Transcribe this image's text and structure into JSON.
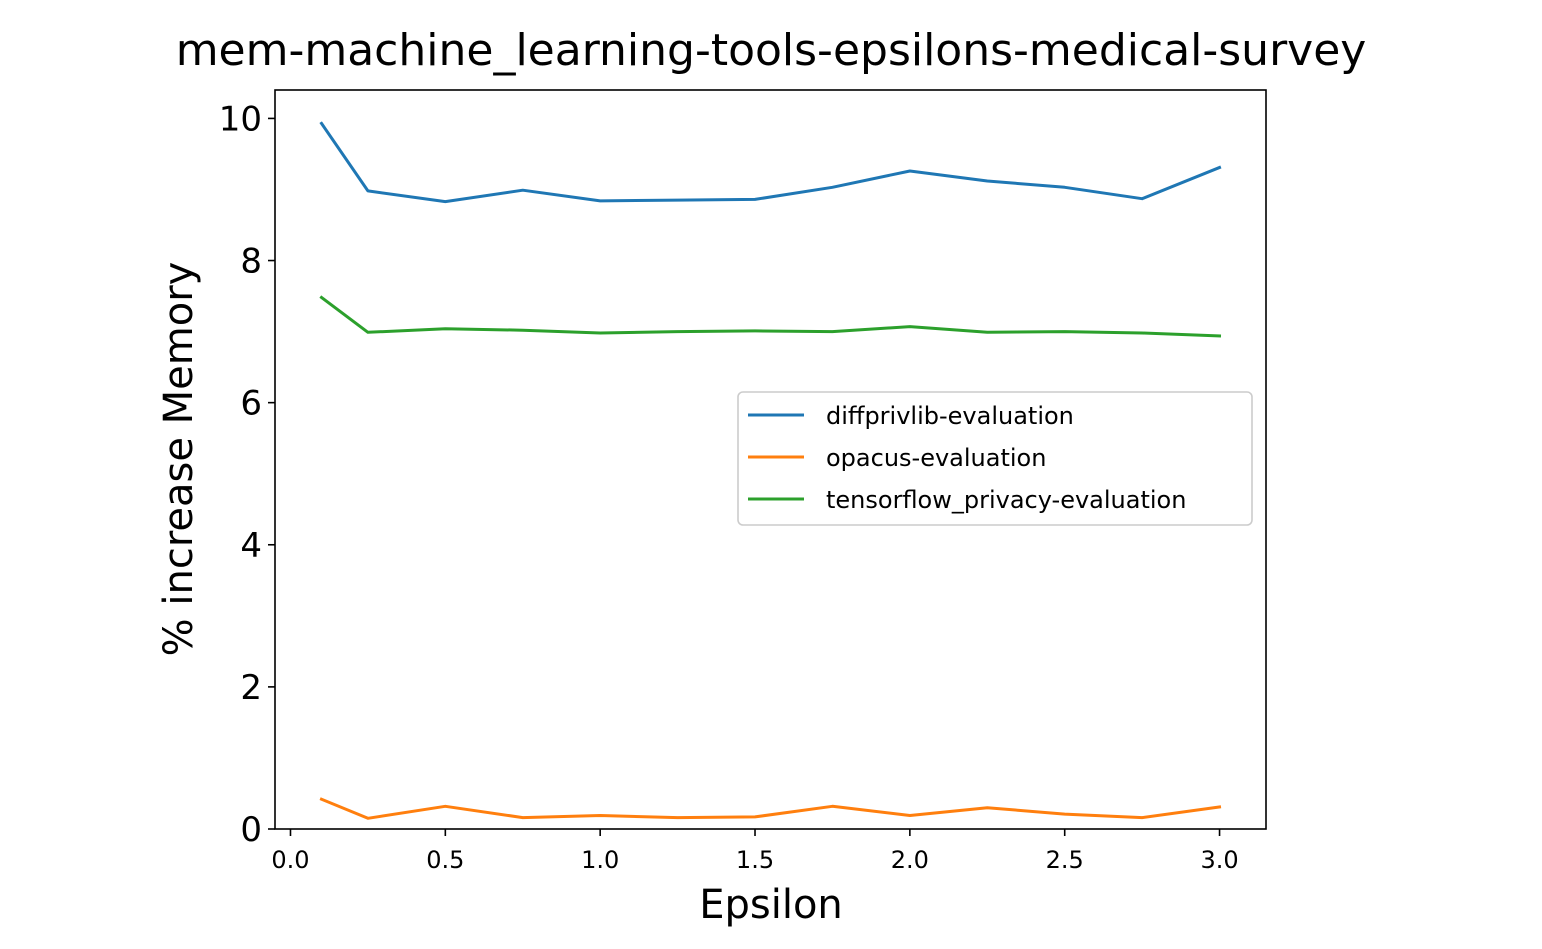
{
  "chart_data": {
    "type": "line",
    "title": "mem-machine_learning-tools-epsilons-medical-survey",
    "xlabel": "Epsilon",
    "ylabel": "% increase Memory",
    "xlim": [
      -0.05,
      3.15
    ],
    "ylim": [
      0,
      10.4
    ],
    "xticks": [
      "0.0",
      "0.5",
      "1.0",
      "1.5",
      "2.0",
      "2.5",
      "3.0"
    ],
    "yticks": [
      "0",
      "2",
      "4",
      "6",
      "8",
      "10"
    ],
    "grid": false,
    "legend_position": "center-right",
    "x": [
      0.1,
      0.25,
      0.5,
      0.75,
      1.0,
      1.25,
      1.5,
      1.75,
      2.0,
      2.25,
      2.5,
      2.75,
      3.0
    ],
    "series": [
      {
        "name": "diffprivlib-evaluation",
        "color": "#1f77b4",
        "values": [
          9.93,
          8.98,
          8.83,
          8.99,
          8.84,
          8.85,
          8.86,
          9.03,
          9.26,
          9.12,
          9.03,
          8.87,
          9.31
        ]
      },
      {
        "name": "opacus-evaluation",
        "color": "#ff7f0e",
        "values": [
          0.42,
          0.15,
          0.32,
          0.16,
          0.19,
          0.16,
          0.17,
          0.32,
          0.19,
          0.3,
          0.21,
          0.16,
          0.31
        ]
      },
      {
        "name": "tensorflow_privacy-evaluation",
        "color": "#2ca02c",
        "values": [
          7.48,
          6.99,
          7.04,
          7.02,
          6.98,
          7.0,
          7.01,
          7.0,
          7.07,
          6.99,
          7.0,
          6.98,
          6.94
        ]
      }
    ]
  }
}
